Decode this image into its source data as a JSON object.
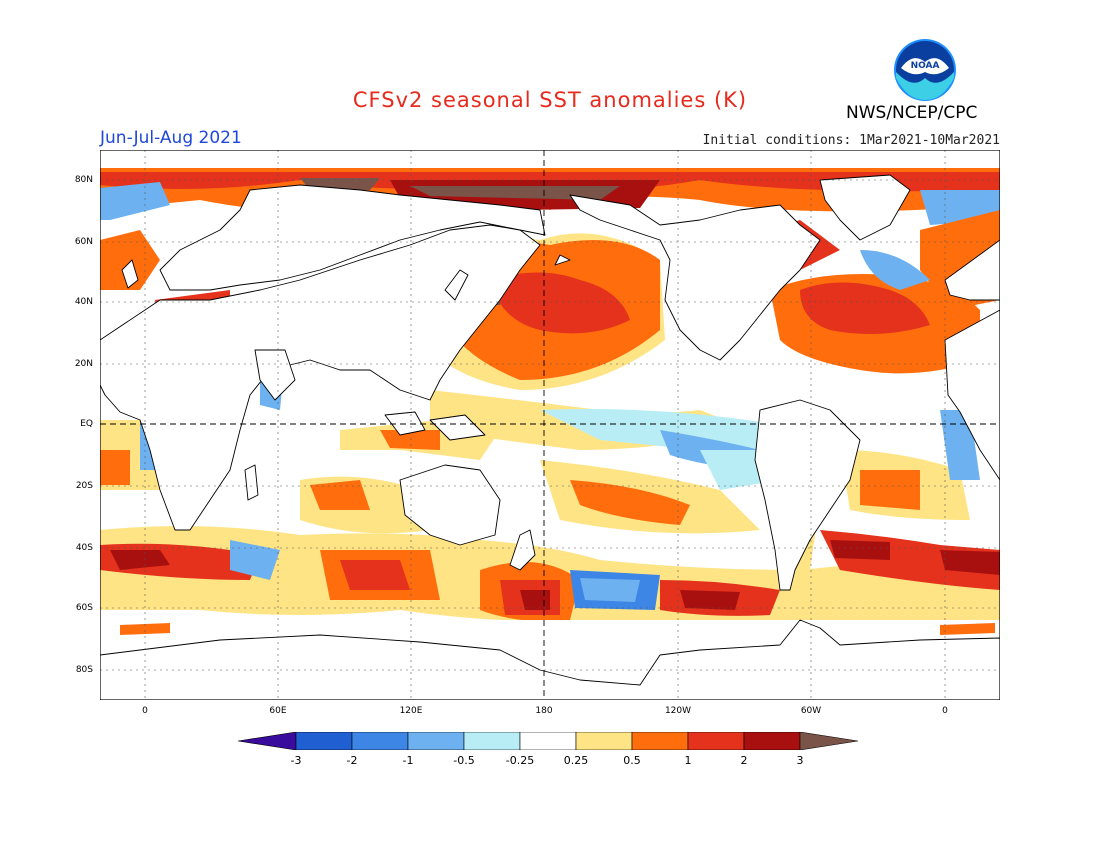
{
  "title": "CFSv2 seasonal SST anomalies (K)",
  "agency": "NWS/NCEP/CPC",
  "logo_text": "NOAA",
  "season": "Jun-Jul-Aug 2021",
  "initial_conditions": "Initial conditions: 1Mar2021-10Mar2021",
  "lat_labels": [
    "80N",
    "60N",
    "40N",
    "20N",
    "EQ",
    "20S",
    "40S",
    "60S",
    "80S"
  ],
  "lon_labels": [
    "0",
    "60E",
    "120E",
    "180",
    "120W",
    "60W",
    "0"
  ],
  "colorbar": {
    "levels": [
      "-3",
      "-2",
      "-1",
      "-0.5",
      "-0.25",
      "0.25",
      "0.5",
      "1",
      "2",
      "3"
    ],
    "colors": [
      "#3a0c9e",
      "#1f5fd1",
      "#3d86e6",
      "#6db1f0",
      "#b8edf5",
      "#ffffff",
      "#ffe486",
      "#ff6d0d",
      "#e4321c",
      "#a81010",
      "#7a5349"
    ]
  },
  "colors": {
    "title": "#e8291c",
    "season": "#1f47d9",
    "land": "#ffffff",
    "anom_pos_1": "#ffe486",
    "anom_pos_2": "#ff6d0d",
    "anom_pos_3": "#e4321c",
    "anom_pos_4": "#a81010",
    "anom_pos_5": "#7a5349",
    "anom_neg_1": "#b8edf5",
    "anom_neg_2": "#6db1f0",
    "anom_neg_3": "#3d86e6"
  }
}
